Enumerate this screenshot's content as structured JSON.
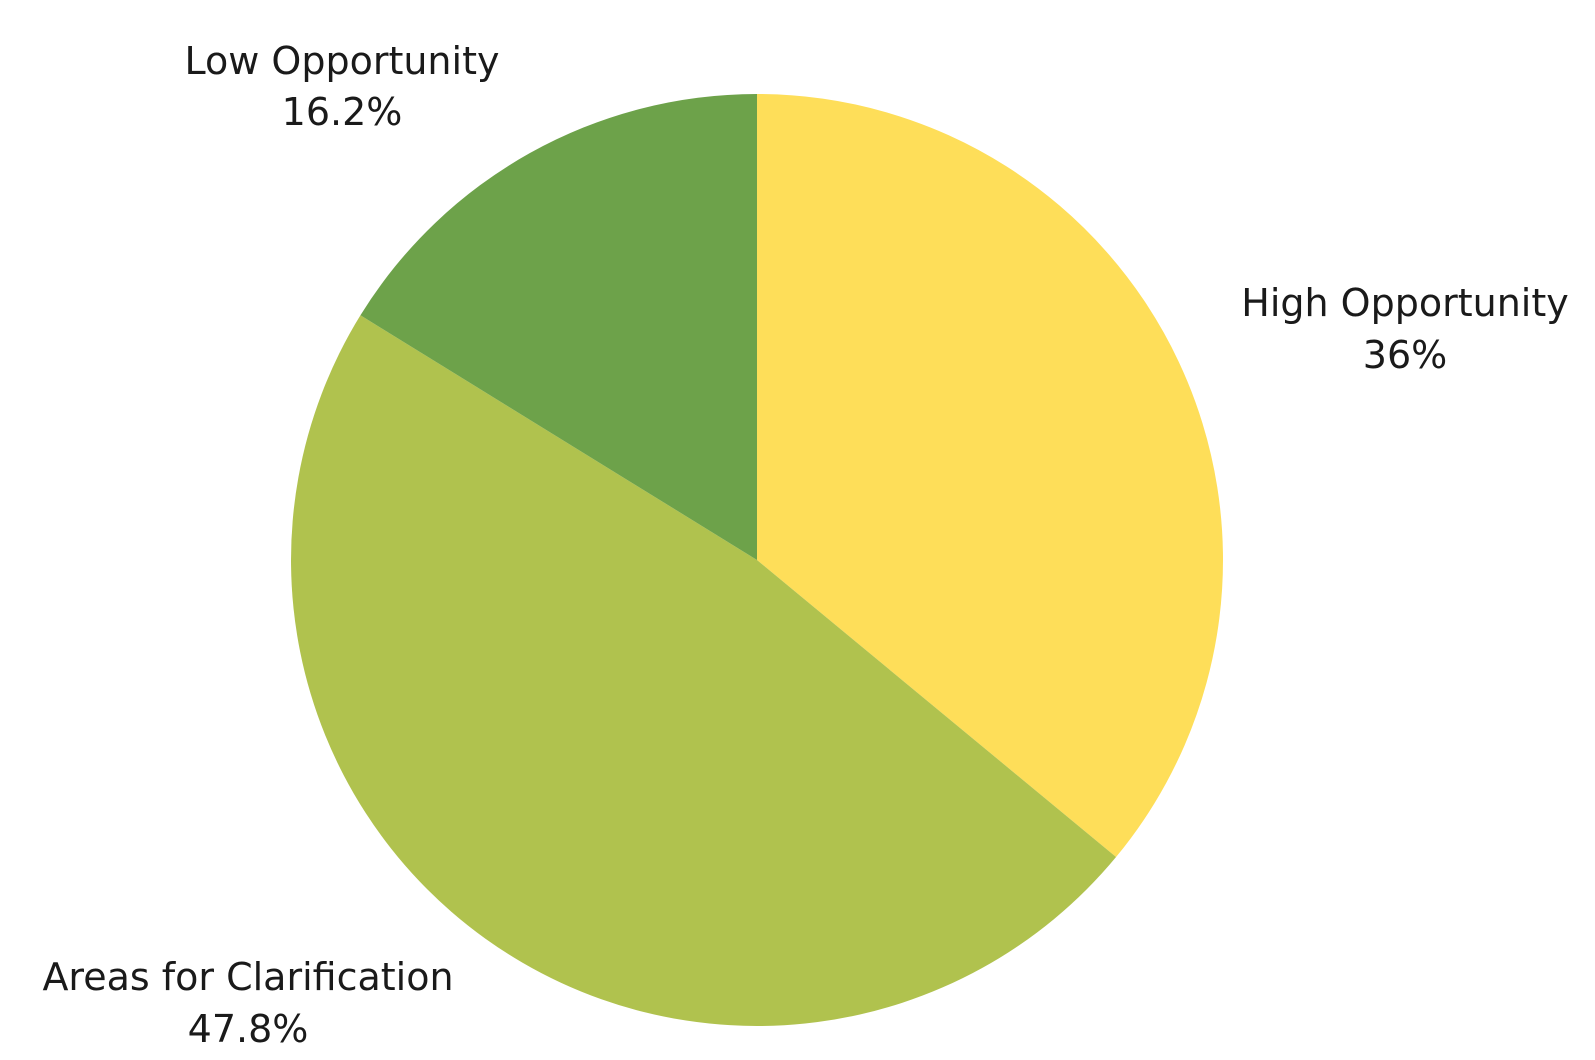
{
  "chart_data": {
    "type": "pie",
    "start_angle": "12 o'clock",
    "direction": "clockwise",
    "slices": [
      {
        "label": "High Opportunity",
        "value": 36,
        "value_label": "36%",
        "color": "#FEDE59"
      },
      {
        "label": "Areas for Clarification",
        "value": 47.8,
        "value_label": "47.8%",
        "color": "#B0C24E"
      },
      {
        "label": "Low Opportunity",
        "value": 16.2,
        "value_label": "16.2%",
        "color": "#6DA24A"
      }
    ]
  }
}
